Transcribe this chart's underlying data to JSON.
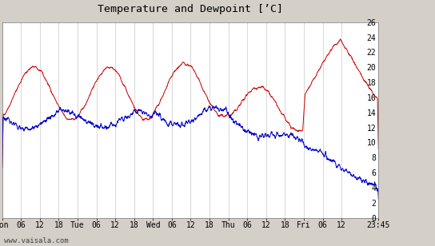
{
  "title": "Temperature and Dewpoint [’C]",
  "title_fontsize": 9.5,
  "bg_color": "#d4d0c8",
  "plot_bg_color": "#ffffff",
  "grid_color": "#c8c8c8",
  "temp_color": "#cc0000",
  "dewp_color": "#0000cc",
  "line_width": 0.7,
  "ylim": [
    0,
    26
  ],
  "yticks": [
    0,
    2,
    4,
    6,
    8,
    10,
    12,
    14,
    16,
    18,
    20,
    22,
    24,
    26
  ],
  "ytick_labels": [
    "0",
    "2",
    "4",
    "6",
    "8",
    "10",
    "12",
    "14",
    "16",
    "18",
    "20",
    "22",
    "24",
    "26"
  ],
  "tick_positions_h": [
    0,
    6,
    12,
    18,
    24,
    30,
    36,
    42,
    48,
    54,
    60,
    66,
    72,
    78,
    84,
    90,
    96,
    102,
    108,
    119.75
  ],
  "xtick_labels": [
    "Mon",
    "06",
    "12",
    "18",
    "Tue",
    "06",
    "12",
    "18",
    "Wed",
    "06",
    "12",
    "18",
    "Thu",
    "06",
    "12",
    "18",
    "Fri",
    "06",
    "12",
    "23:45"
  ],
  "watermark": "www.vaisala.com",
  "xlim": [
    0,
    119.75
  ],
  "n_points": 2000
}
